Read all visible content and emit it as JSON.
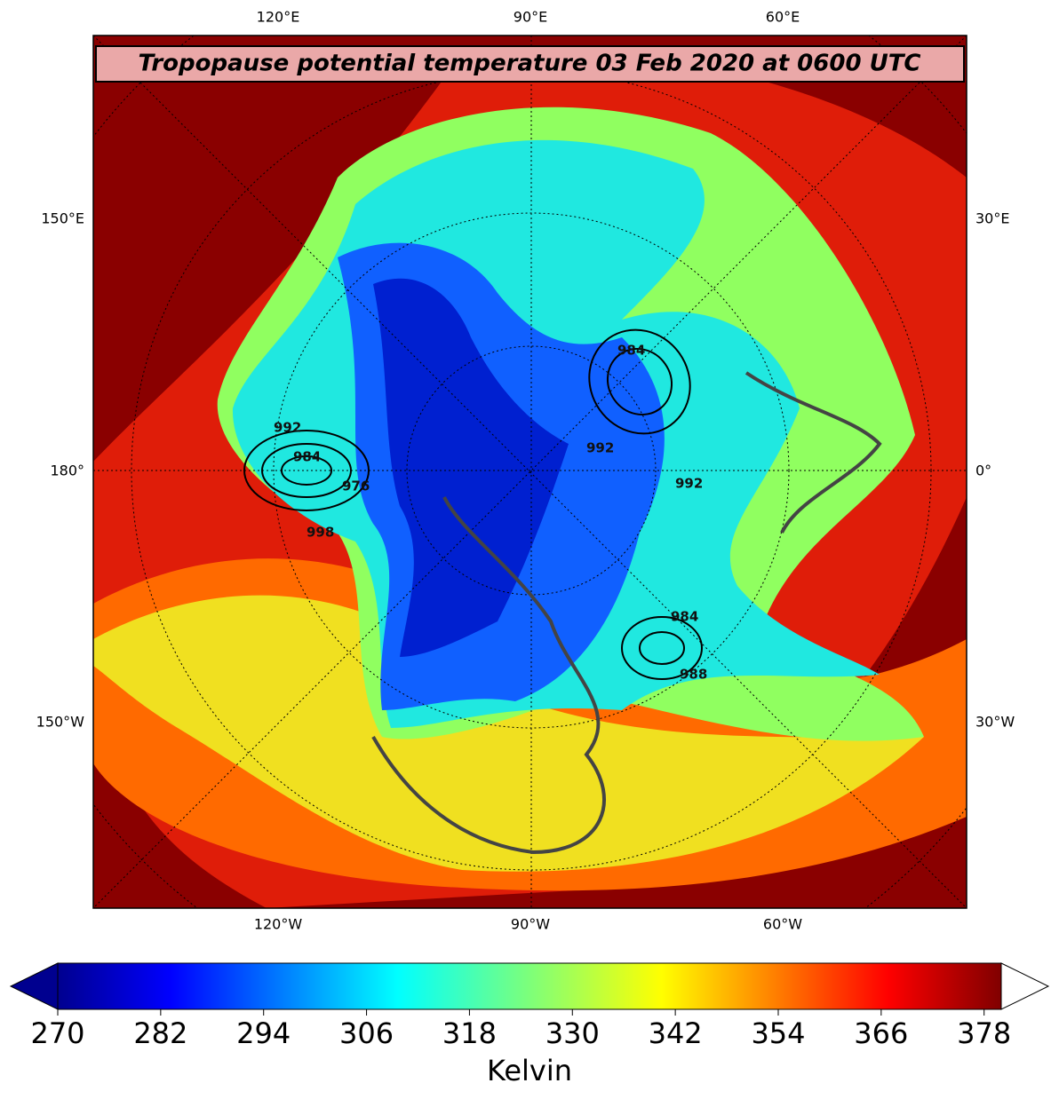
{
  "title": "Tropopause potential temperature 03 Feb 2020 at 0600 UTC",
  "lon_labels_top": [
    "120°E",
    "90°E",
    "60°E"
  ],
  "lon_labels_bottom": [
    "120°W",
    "90°W",
    "60°W"
  ],
  "lat_labels_left": [
    "150°E",
    "180°",
    "150°W"
  ],
  "lat_labels_right": [
    "30°E",
    "0°",
    "30°W"
  ],
  "contour_labels": [
    "992",
    "984",
    "976",
    "998",
    "984",
    "992",
    "992",
    "984",
    "988"
  ],
  "colorbar": {
    "label": "Kelvin",
    "lim": [
      270,
      380
    ],
    "ticks": [
      270,
      282,
      294,
      306,
      318,
      330,
      342,
      354,
      366,
      378
    ],
    "extend": "both"
  }
}
